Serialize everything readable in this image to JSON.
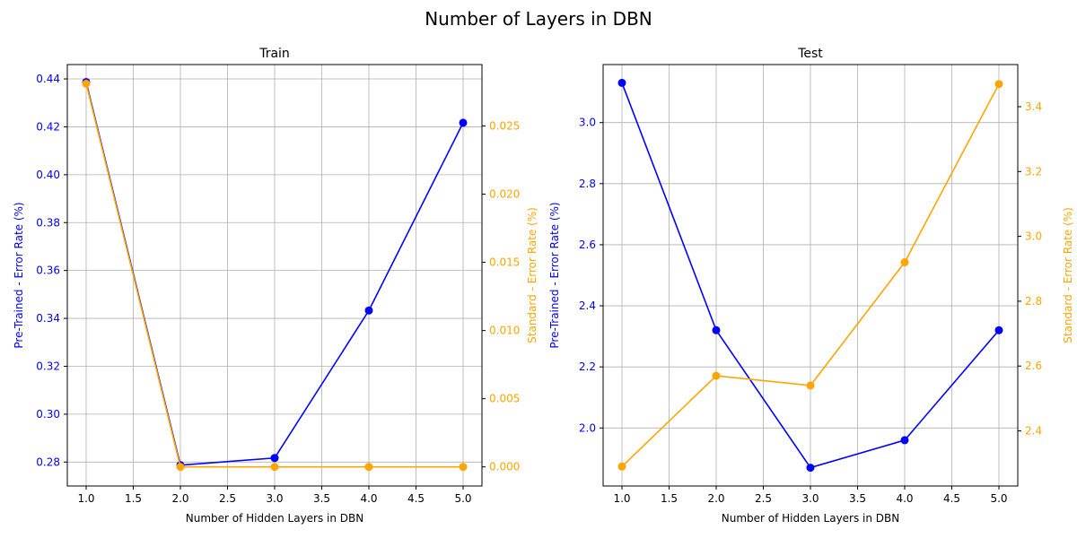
{
  "figure": {
    "title": "Number of Layers in DBN"
  },
  "colors": {
    "primary": "#0000ff",
    "secondary": "#ffa500",
    "grid": "#b0b0b0",
    "axis": "#000000"
  },
  "chart_data": [
    {
      "type": "line",
      "title": "Train",
      "xlabel": "Number of Hidden Layers in DBN",
      "xlim": [
        0.8,
        5.2
      ],
      "xticks": [
        "1.0",
        "1.5",
        "2.0",
        "2.5",
        "3.0",
        "3.5",
        "4.0",
        "4.5",
        "5.0"
      ],
      "grid": true,
      "left_axis": {
        "label": "Pre-Trained - Error Rate (%)",
        "ylim": [
          0.27,
          0.446
        ],
        "ticks": [
          "0.28",
          "0.30",
          "0.32",
          "0.34",
          "0.36",
          "0.38",
          "0.40",
          "0.42",
          "0.44"
        ]
      },
      "right_axis": {
        "label": "Standard - Error Rate (%)",
        "ylim": [
          -0.0014,
          0.0295
        ],
        "ticks": [
          "0.000",
          "0.005",
          "0.010",
          "0.015",
          "0.020",
          "0.025"
        ]
      },
      "series": [
        {
          "axis": "left",
          "color": "#0000ff",
          "x": [
            1,
            2,
            3,
            4,
            5
          ],
          "y": [
            0.4387,
            0.2787,
            0.2817,
            0.3433,
            0.4217
          ]
        },
        {
          "axis": "right",
          "color": "#ffa500",
          "x": [
            1,
            2,
            3,
            4,
            5
          ],
          "y": [
            0.0281,
            0.0,
            0.0,
            0.0,
            0.0
          ]
        }
      ]
    },
    {
      "type": "line",
      "title": "Test",
      "xlabel": "Number of Hidden Layers in DBN",
      "xlim": [
        0.8,
        5.2
      ],
      "xticks": [
        "1.0",
        "1.5",
        "2.0",
        "2.5",
        "3.0",
        "3.5",
        "4.0",
        "4.5",
        "5.0"
      ],
      "grid": true,
      "left_axis": {
        "label": "Pre-Trained - Error Rate (%)",
        "ylim": [
          1.81,
          3.19
        ],
        "ticks": [
          "2.0",
          "2.2",
          "2.4",
          "2.6",
          "2.8",
          "3.0"
        ]
      },
      "right_axis": {
        "label": "Standard - Error Rate (%)",
        "ylim": [
          2.23,
          3.53
        ],
        "ticks": [
          "2.4",
          "2.6",
          "2.8",
          "3.0",
          "3.2",
          "3.4"
        ]
      },
      "series": [
        {
          "axis": "left",
          "color": "#0000ff",
          "x": [
            1,
            2,
            3,
            4,
            5
          ],
          "y": [
            3.13,
            2.32,
            1.87,
            1.96,
            2.32
          ]
        },
        {
          "axis": "right",
          "color": "#ffa500",
          "x": [
            1,
            2,
            3,
            4,
            5
          ],
          "y": [
            2.29,
            2.57,
            2.54,
            2.92,
            3.47
          ]
        }
      ]
    }
  ]
}
